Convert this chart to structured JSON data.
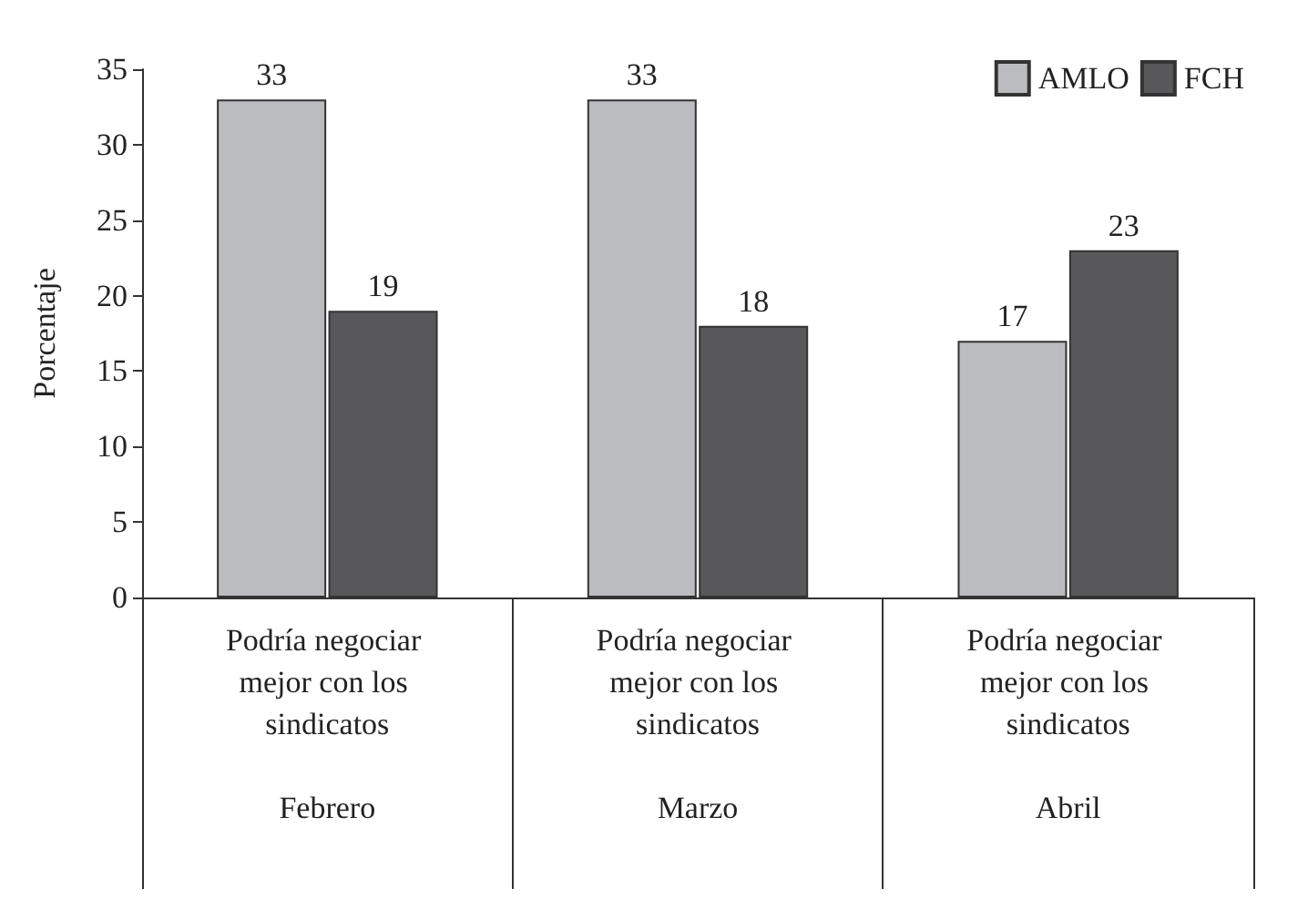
{
  "chart_data": {
    "type": "bar",
    "ylabel": "Porcentaje",
    "categories": [
      "Podría negociar mejor con los sindicatos\nFebrero",
      "Podría negociar mejor con los sindicatos\nMarzo",
      "Podría negociar mejor con los sindicatos\nAbril"
    ],
    "series": [
      {
        "name": "AMLO",
        "color": "#bbbcc0",
        "values": [
          33,
          33,
          17
        ]
      },
      {
        "name": "FCH",
        "color": "#58585a",
        "values": [
          19,
          18,
          23
        ]
      }
    ],
    "ylim": [
      0,
      35
    ],
    "yticks": [
      0,
      5,
      10,
      15,
      20,
      25,
      30,
      35
    ],
    "grid": false,
    "legend": "top right",
    "data_labels": true
  }
}
